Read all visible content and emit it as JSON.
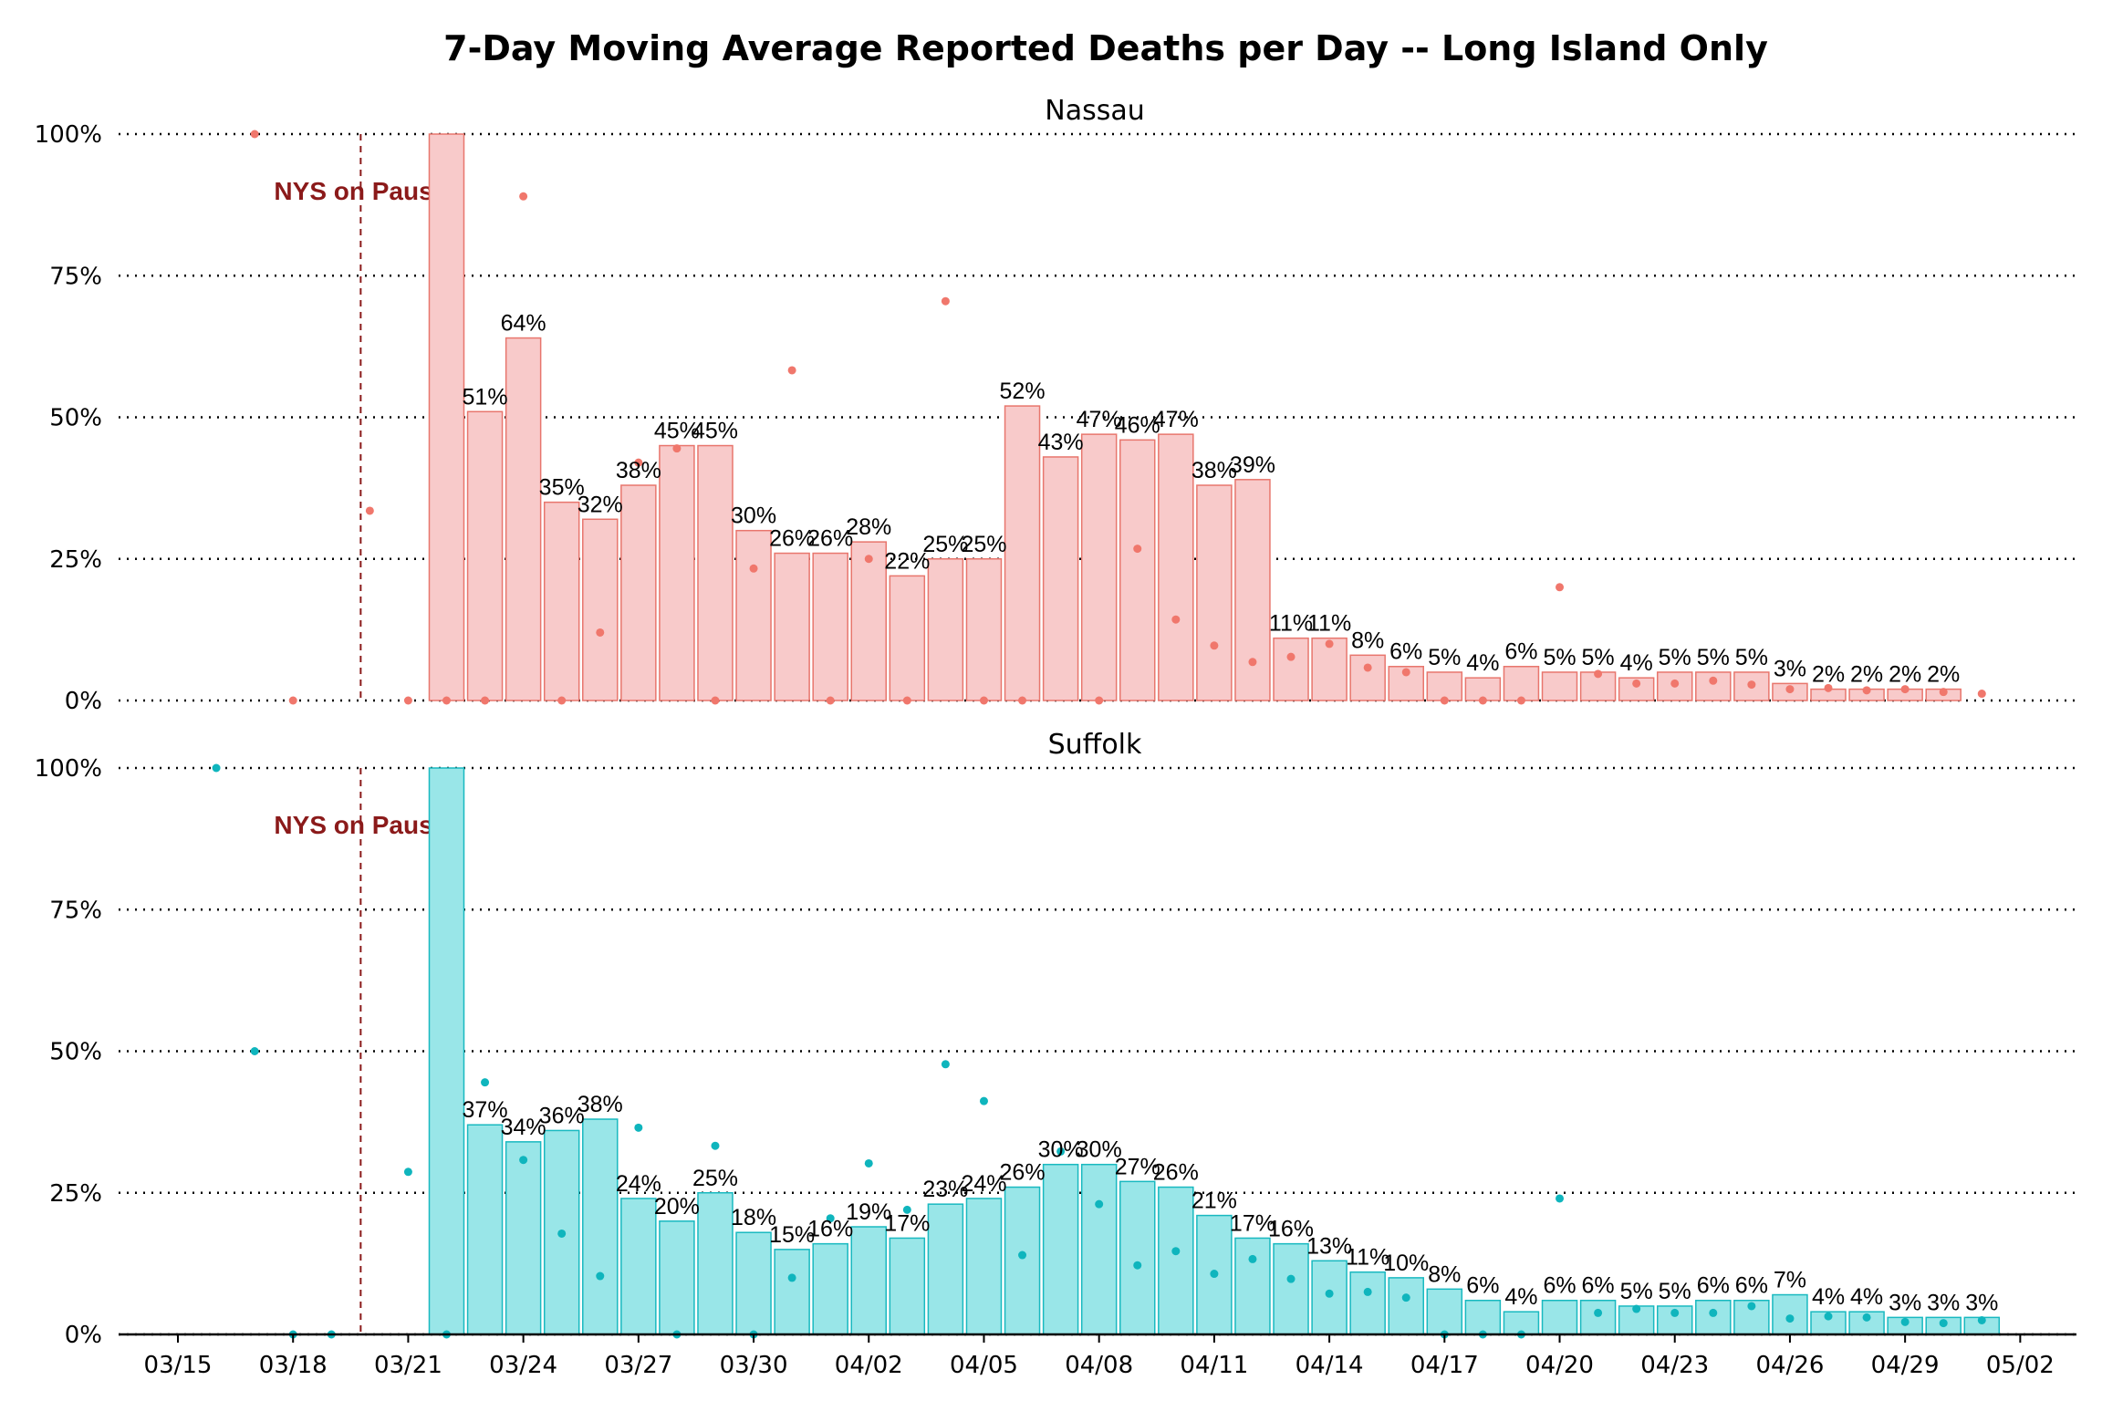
{
  "chart_data": {
    "type": "bar",
    "title": "7-Day Moving Average Reported Deaths per Day -- Long Island Only",
    "x_ticks": [
      "03/15",
      "03/18",
      "03/21",
      "03/24",
      "03/27",
      "03/30",
      "04/02",
      "04/05",
      "04/08",
      "04/11",
      "04/14",
      "04/17",
      "04/20",
      "04/23",
      "04/26",
      "04/29",
      "05/02"
    ],
    "y_ticks": [
      "0%",
      "25%",
      "50%",
      "75%",
      "100%"
    ],
    "ylim": [
      0,
      1
    ],
    "grid": true,
    "annotation": {
      "text": "NYS on Pause",
      "date": "03/20",
      "color": "#8b1a1a"
    },
    "panels": [
      {
        "name": "Nassau",
        "bar_color": "#f8caca",
        "edge_color": "#e8766d",
        "point_color": "#f0776c",
        "bar_dates": [
          "03/22",
          "03/23",
          "03/24",
          "03/25",
          "03/26",
          "03/27",
          "03/28",
          "03/29",
          "03/30",
          "03/31",
          "04/01",
          "04/02",
          "04/03",
          "04/04",
          "04/05",
          "04/06",
          "04/07",
          "04/08",
          "04/09",
          "04/10",
          "04/11",
          "04/12",
          "04/13",
          "04/14",
          "04/15",
          "04/16",
          "04/17",
          "04/18",
          "04/19",
          "04/20",
          "04/21",
          "04/22",
          "04/23",
          "04/24",
          "04/25",
          "04/26",
          "04/27",
          "04/28",
          "04/29",
          "04/30",
          "05/01"
        ],
        "bar_values": [
          1.0,
          0.51,
          0.64,
          0.35,
          0.32,
          0.38,
          0.45,
          0.45,
          0.3,
          0.26,
          0.26,
          0.28,
          0.22,
          0.25,
          0.25,
          0.52,
          0.43,
          0.47,
          0.46,
          0.47,
          0.38,
          0.39,
          0.11,
          0.11,
          0.08,
          0.06,
          0.05,
          0.04,
          0.06,
          0.05,
          0.05,
          0.04,
          0.05,
          0.05,
          0.05,
          0.03,
          0.02,
          0.02,
          0.02,
          0.02,
          null
        ],
        "bar_labels": [
          "",
          "51%",
          "64%",
          "35%",
          "32%",
          "38%",
          "45%",
          "45%",
          "30%",
          "26%",
          "26%",
          "28%",
          "22%",
          "25%",
          "25%",
          "52%",
          "43%",
          "47%",
          "46%",
          "47%",
          "38%",
          "39%",
          "11%",
          "11%",
          "8%",
          "6%",
          "5%",
          "4%",
          "6%",
          "5%",
          "5%",
          "4%",
          "5%",
          "5%",
          "5%",
          "3%",
          "2%",
          "2%",
          "2%",
          "2%",
          ""
        ],
        "point_dates": [
          "03/17",
          "03/18",
          "03/20",
          "03/21",
          "03/22",
          "03/23",
          "03/24",
          "03/25",
          "03/26",
          "03/27",
          "03/28",
          "03/29",
          "03/30",
          "03/31",
          "04/01",
          "04/02",
          "04/03",
          "04/04",
          "04/05",
          "04/06",
          "04/08",
          "04/09",
          "04/10",
          "04/11",
          "04/12",
          "04/13",
          "04/14",
          "04/15",
          "04/16",
          "04/17",
          "04/18",
          "04/19",
          "04/20",
          "04/21",
          "04/22",
          "04/23",
          "04/24",
          "04/25",
          "04/26",
          "04/27",
          "04/28",
          "04/29",
          "04/30",
          "05/01"
        ],
        "point_values": [
          1.0,
          0.0,
          0.335,
          0.0,
          0.0,
          0.0,
          0.89,
          0.0,
          0.12,
          0.42,
          0.445,
          0.0,
          0.233,
          0.583,
          0.0,
          0.25,
          0.0,
          0.705,
          0.0,
          0.0,
          0.0,
          0.268,
          0.143,
          0.097,
          0.068,
          0.077,
          0.1,
          0.058,
          0.05,
          0.0,
          0.0,
          0.0,
          0.2,
          0.047,
          0.03,
          0.03,
          0.035,
          0.028,
          0.02,
          0.022,
          0.018,
          0.02,
          0.015,
          0.012
        ]
      },
      {
        "name": "Suffolk",
        "bar_color": "#99e6e8",
        "edge_color": "#19b9c0",
        "point_color": "#0fb5bd",
        "bar_dates": [
          "03/22",
          "03/23",
          "03/24",
          "03/25",
          "03/26",
          "03/27",
          "03/28",
          "03/29",
          "03/30",
          "03/31",
          "04/01",
          "04/02",
          "04/03",
          "04/04",
          "04/05",
          "04/06",
          "04/07",
          "04/08",
          "04/09",
          "04/10",
          "04/11",
          "04/12",
          "04/13",
          "04/14",
          "04/15",
          "04/16",
          "04/17",
          "04/18",
          "04/19",
          "04/20",
          "04/21",
          "04/22",
          "04/23",
          "04/24",
          "04/25",
          "04/26",
          "04/27",
          "04/28",
          "04/29",
          "04/30",
          "05/01"
        ],
        "bar_values": [
          1.0,
          0.37,
          0.34,
          0.36,
          0.38,
          0.24,
          0.2,
          0.25,
          0.18,
          0.15,
          0.16,
          0.19,
          0.17,
          0.23,
          0.24,
          0.26,
          0.3,
          0.3,
          0.27,
          0.26,
          0.21,
          0.17,
          0.16,
          0.13,
          0.11,
          0.1,
          0.08,
          0.06,
          0.04,
          0.06,
          0.06,
          0.05,
          0.05,
          0.06,
          0.06,
          0.07,
          0.04,
          0.04,
          0.03,
          0.03,
          0.03
        ],
        "bar_labels": [
          "",
          "37%",
          "34%",
          "36%",
          "38%",
          "24%",
          "20%",
          "25%",
          "18%",
          "15%",
          "16%",
          "19%",
          "17%",
          "23%",
          "24%",
          "26%",
          "30%",
          "30%",
          "27%",
          "26%",
          "21%",
          "17%",
          "16%",
          "13%",
          "11%",
          "10%",
          "8%",
          "6%",
          "4%",
          "6%",
          "6%",
          "5%",
          "5%",
          "6%",
          "6%",
          "7%",
          "4%",
          "4%",
          "3%",
          "3%",
          "3%"
        ],
        "point_dates": [
          "03/16",
          "03/17",
          "03/18",
          "03/19",
          "03/21",
          "03/22",
          "03/23",
          "03/24",
          "03/25",
          "03/26",
          "03/27",
          "03/28",
          "03/29",
          "03/30",
          "03/31",
          "04/01",
          "04/02",
          "04/03",
          "04/04",
          "04/05",
          "04/06",
          "04/07",
          "04/08",
          "04/09",
          "04/10",
          "04/11",
          "04/12",
          "04/13",
          "04/14",
          "04/15",
          "04/16",
          "04/17",
          "04/18",
          "04/19",
          "04/20",
          "04/21",
          "04/22",
          "04/23",
          "04/24",
          "04/25",
          "04/26",
          "04/27",
          "04/28",
          "04/29",
          "04/30",
          "05/01"
        ],
        "point_values": [
          1.0,
          0.5,
          0.0,
          0.0,
          0.287,
          0.0,
          0.445,
          0.308,
          0.178,
          0.103,
          0.365,
          0.0,
          0.333,
          0.0,
          0.1,
          0.205,
          0.302,
          0.22,
          0.477,
          0.412,
          0.14,
          0.323,
          0.23,
          0.122,
          0.147,
          0.107,
          0.133,
          0.098,
          0.072,
          0.075,
          0.065,
          0.0,
          0.0,
          0.0,
          0.24,
          0.038,
          0.045,
          0.038,
          0.038,
          0.05,
          0.028,
          0.032,
          0.03,
          0.022,
          0.02,
          0.025
        ]
      }
    ]
  }
}
